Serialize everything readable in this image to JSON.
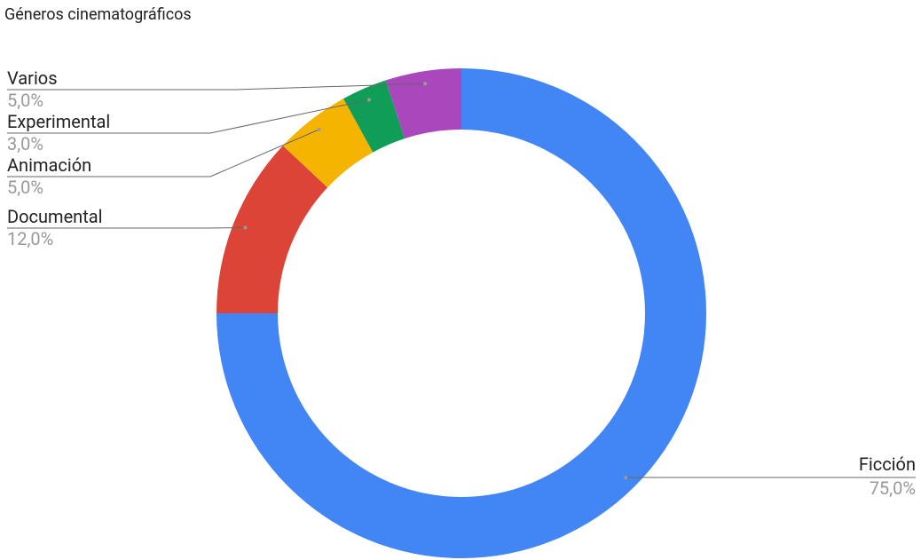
{
  "chart_data": {
    "type": "donut",
    "title": "Géneros cinematográficos",
    "categories": [
      "Ficción",
      "Documental",
      "Animación",
      "Experimental",
      "Varios"
    ],
    "values": [
      75,
      12,
      5,
      3,
      5
    ],
    "value_labels": [
      "75,0%",
      "12,0%",
      "5,0%",
      "3,0%",
      "5,0%"
    ],
    "colors": [
      "#4285f4",
      "#db4437",
      "#f4b400",
      "#0f9d58",
      "#ab47bc"
    ]
  }
}
